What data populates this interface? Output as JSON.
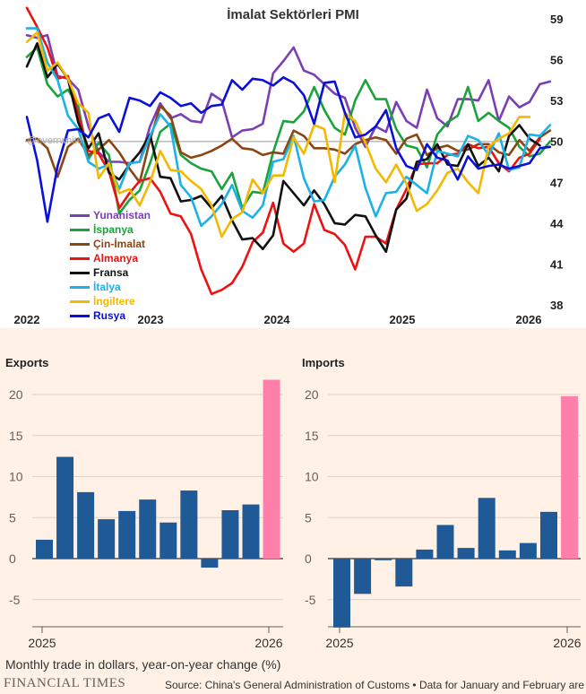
{
  "pmi": {
    "title": "İmalat Sektörleri PMI",
    "watermark": "@everrwhite",
    "legend": [
      {
        "name": "Yunanistan",
        "color": "#7b3fb5"
      },
      {
        "name": "İspanya",
        "color": "#1aa33b"
      },
      {
        "name": "Çin-İmalat",
        "color": "#8b4513"
      },
      {
        "name": "Almanya",
        "color": "#ee1111"
      },
      {
        "name": "Fransa",
        "color": "#111111"
      },
      {
        "name": "İtalya",
        "color": "#1ab2e8"
      },
      {
        "name": "İngiltere",
        "color": "#f5b800"
      },
      {
        "name": "Rusya",
        "color": "#0a10d8"
      }
    ]
  },
  "chart_data": [
    {
      "type": "line",
      "title": "İmalat Sektörleri PMI",
      "x_start": 2022.0,
      "x_step_months": 1,
      "xticks": [
        "2022",
        "2023",
        "2024",
        "2025",
        "2026"
      ],
      "ylim": [
        38,
        59.5
      ],
      "yticks": [
        59,
        56,
        53,
        50,
        47,
        44,
        41,
        38
      ],
      "reference_line": 50,
      "series": [
        {
          "name": "Yunanistan",
          "color": "#7b3fb5",
          "values": [
            57.8,
            57.6,
            57.8,
            54.8,
            54.6,
            53.8,
            51.1,
            49.2,
            48.5,
            48.5,
            48.4,
            48.5,
            51.1,
            52.8,
            51.7,
            52.0,
            51.5,
            51.4,
            53.5,
            53.0,
            50.3,
            50.8,
            50.9,
            51.3,
            55.0,
            55.9,
            56.9,
            55.2,
            54.9,
            54.2,
            53.5,
            53.2,
            51.0,
            49.6,
            51.1,
            50.7,
            52.9,
            51.5,
            51.0,
            53.8,
            51.7,
            51.1,
            53.1,
            53.1,
            53.0,
            54.5,
            51.5,
            53.3,
            52.5,
            52.9,
            54.2,
            54.4
          ]
        },
        {
          "name": "İspanya",
          "color": "#1aa33b",
          "values": [
            56.2,
            56.9,
            54.2,
            53.3,
            53.8,
            52.6,
            48.7,
            49.9,
            49.0,
            44.7,
            45.7,
            46.4,
            48.4,
            50.7,
            51.3,
            49.0,
            48.4,
            48.0,
            47.8,
            46.5,
            47.7,
            45.1,
            46.3,
            46.2,
            49.2,
            51.5,
            51.4,
            52.2,
            54.0,
            52.3,
            51.0,
            50.5,
            53.0,
            54.5,
            53.1,
            53.1,
            50.9,
            49.7,
            49.5,
            48.1,
            50.5,
            51.4,
            51.9,
            54.0,
            51.5,
            52.1,
            51.5,
            51.0,
            49.6,
            48.9,
            49.1,
            50.0
          ]
        },
        {
          "name": "Çin-İmalat",
          "color": "#8b4513",
          "values": [
            50.1,
            50.2,
            49.5,
            47.4,
            49.6,
            50.2,
            49.0,
            49.4,
            50.1,
            49.2,
            48.0,
            47.0,
            50.1,
            52.6,
            51.9,
            49.2,
            48.8,
            49.0,
            49.3,
            49.7,
            50.2,
            49.5,
            49.4,
            49.0,
            49.2,
            49.1,
            50.8,
            50.4,
            49.5,
            49.5,
            49.4,
            49.1,
            49.8,
            50.1,
            50.3,
            50.1,
            49.1,
            50.2,
            50.5,
            49.0,
            49.5,
            49.7,
            49.3,
            49.4,
            49.8,
            49.8,
            49.2,
            49.0,
            50.1,
            49.3,
            50.3,
            50.8
          ]
        },
        {
          "name": "Almanya",
          "color": "#ee1111",
          "values": [
            59.8,
            58.4,
            56.9,
            54.6,
            54.8,
            52.0,
            49.3,
            49.1,
            47.8,
            45.1,
            46.2,
            47.1,
            47.3,
            46.3,
            44.7,
            44.5,
            43.2,
            40.6,
            38.8,
            39.1,
            39.6,
            40.8,
            42.6,
            43.3,
            45.5,
            42.5,
            41.9,
            42.5,
            45.4,
            43.5,
            43.2,
            42.4,
            40.6,
            43.0,
            43.0,
            42.5,
            45.0,
            46.5,
            48.3,
            48.4,
            48.4,
            49.0,
            49.1,
            49.8,
            49.5,
            49.6,
            48.4,
            47.8,
            48.8,
            49.1,
            50.2
          ]
        },
        {
          "name": "Fransa",
          "color": "#111111",
          "values": [
            55.5,
            57.2,
            54.7,
            55.7,
            54.6,
            51.4,
            49.5,
            50.6,
            47.7,
            47.2,
            48.3,
            49.2,
            50.5,
            47.4,
            47.3,
            45.6,
            45.7,
            46.0,
            45.1,
            46.0,
            44.2,
            42.8,
            42.9,
            42.1,
            43.1,
            47.1,
            46.2,
            45.3,
            46.4,
            45.4,
            44.0,
            43.9,
            44.6,
            44.5,
            43.1,
            41.9,
            45.0,
            45.8,
            48.5,
            48.7,
            49.8,
            48.3,
            48.2,
            49.8,
            48.2,
            48.8,
            47.8,
            50.4,
            51.2,
            50.2,
            49.7
          ]
        },
        {
          "name": "İtalya",
          "color": "#1ab2e8",
          "values": [
            58.3,
            58.3,
            55.8,
            54.5,
            51.9,
            50.9,
            48.5,
            48.0,
            48.3,
            46.5,
            48.4,
            48.5,
            50.4,
            52.0,
            51.1,
            46.8,
            45.9,
            43.8,
            44.5,
            45.4,
            46.8,
            44.9,
            44.4,
            45.3,
            48.5,
            48.7,
            50.4,
            47.3,
            45.6,
            45.7,
            47.4,
            48.3,
            49.7,
            46.6,
            44.5,
            46.2,
            46.3,
            47.4,
            46.8,
            46.2,
            49.3,
            49.1,
            48.9,
            50.4,
            50.1,
            49.0,
            50.6,
            47.9,
            48.1,
            50.5,
            50.4,
            51.2
          ]
        },
        {
          "name": "İngiltere",
          "color": "#f5b800",
          "values": [
            57.3,
            58.0,
            55.2,
            55.8,
            54.6,
            52.8,
            52.1,
            47.3,
            48.4,
            46.2,
            46.5,
            45.3,
            47.0,
            49.3,
            47.9,
            47.8,
            47.1,
            46.5,
            45.3,
            43.0,
            44.3,
            44.8,
            47.2,
            46.2,
            47.5,
            47.5,
            50.3,
            49.1,
            51.2,
            50.9,
            47.0,
            52.1,
            51.5,
            49.9,
            48.0,
            47.0,
            48.3,
            46.9,
            44.9,
            45.4,
            46.4,
            47.7,
            48.0,
            47.0,
            46.2,
            49.6,
            50.2,
            50.6,
            51.8,
            51.8
          ]
        },
        {
          "name": "Rusya",
          "color": "#0a10d8",
          "values": [
            51.8,
            48.6,
            44.1,
            48.2,
            50.8,
            50.9,
            50.3,
            51.7,
            52.0,
            50.7,
            53.2,
            53.0,
            52.6,
            53.6,
            53.2,
            52.6,
            52.8,
            52.1,
            52.6,
            52.7,
            54.5,
            53.8,
            54.6,
            54.5,
            54.1,
            54.7,
            54.3,
            53.4,
            51.3,
            54.3,
            54.4,
            52.1,
            50.3,
            50.5,
            51.1,
            52.3,
            49.5,
            48.2,
            47.9,
            49.8,
            48.8,
            48.6,
            47.2,
            48.9,
            48.0,
            48.2,
            48.3,
            48.0,
            48.2,
            48.4,
            49.5,
            49.6
          ]
        }
      ]
    },
    {
      "type": "bar",
      "title": "Exports",
      "xticks": [
        "2025",
        "2026"
      ],
      "values": [
        2.3,
        12.4,
        8.1,
        4.8,
        5.8,
        7.2,
        4.4,
        8.3,
        -1.1,
        5.9,
        6.6,
        21.8
      ],
      "highlight_last": true,
      "bar_color": "#1f5a96",
      "highlight_color": "#ff7fab",
      "ylim": [
        -8.5,
        22
      ],
      "yticks": [
        20,
        15,
        10,
        5,
        0,
        -5
      ]
    },
    {
      "type": "bar",
      "title": "Imports",
      "xticks": [
        "2025",
        "2026"
      ],
      "values": [
        -8.4,
        -4.3,
        -0.2,
        -3.4,
        1.1,
        4.1,
        1.3,
        7.4,
        1.0,
        1.9,
        5.7,
        19.8
      ],
      "highlight_last": true,
      "bar_color": "#1f5a96",
      "highlight_color": "#ff7fab",
      "ylim": [
        -8.5,
        22
      ],
      "yticks": [
        20,
        15,
        10,
        5,
        0,
        -5
      ]
    }
  ],
  "bottom": {
    "footnote": "Monthly trade in dollars, year-on-year change (%)",
    "ft_logo": "FINANCIAL TIMES",
    "source": "Source: China's General Administration of Customs • Data for January and February are c"
  }
}
